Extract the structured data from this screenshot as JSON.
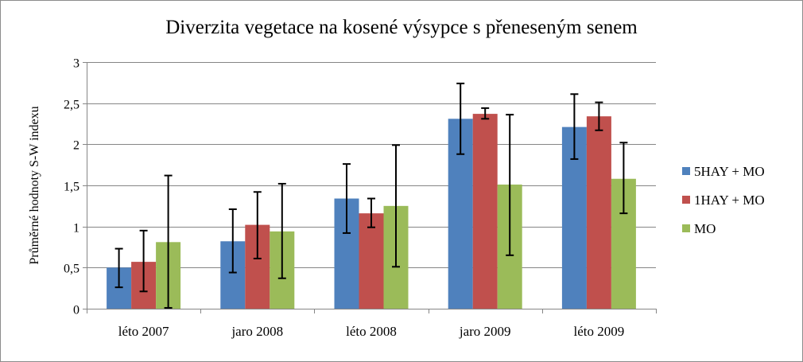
{
  "chart_data": {
    "type": "bar",
    "title": "Diverzita vegetace na kosené výsypce s přeneseným senem",
    "ylabel": "Průměrné hodnoty S-W indexu",
    "xlabel": "",
    "categories": [
      "léto 2007",
      "jaro 2008",
      "léto 2008",
      "jaro 2009",
      "léto 2009"
    ],
    "ylim": [
      0,
      3
    ],
    "yticks": [
      "0",
      "0,5",
      "1",
      "1,5",
      "2",
      "2,5",
      "3"
    ],
    "ytick_values": [
      0,
      0.5,
      1,
      1.5,
      2,
      2.5,
      3
    ],
    "grid": true,
    "legend_position": "right",
    "series": [
      {
        "name": "5HAY + MO",
        "color": "#4f81bd",
        "values": [
          0.5,
          0.82,
          1.34,
          2.31,
          2.21
        ],
        "error_low": [
          0.26,
          0.44,
          0.92,
          1.88,
          1.82
        ],
        "error_high": [
          0.73,
          1.21,
          1.76,
          2.74,
          2.61
        ]
      },
      {
        "name": "1HAY + MO",
        "color": "#c0504d",
        "values": [
          0.57,
          1.02,
          1.16,
          2.37,
          2.34
        ],
        "error_low": [
          0.21,
          0.61,
          0.99,
          2.31,
          2.17
        ],
        "error_high": [
          0.95,
          1.42,
          1.34,
          2.44,
          2.51
        ]
      },
      {
        "name": "MO",
        "color": "#9bbb59",
        "values": [
          0.81,
          0.94,
          1.25,
          1.51,
          1.58
        ],
        "error_low": [
          0.01,
          0.37,
          0.51,
          0.65,
          1.16
        ],
        "error_high": [
          1.62,
          1.52,
          1.99,
          2.36,
          2.02
        ]
      }
    ]
  }
}
